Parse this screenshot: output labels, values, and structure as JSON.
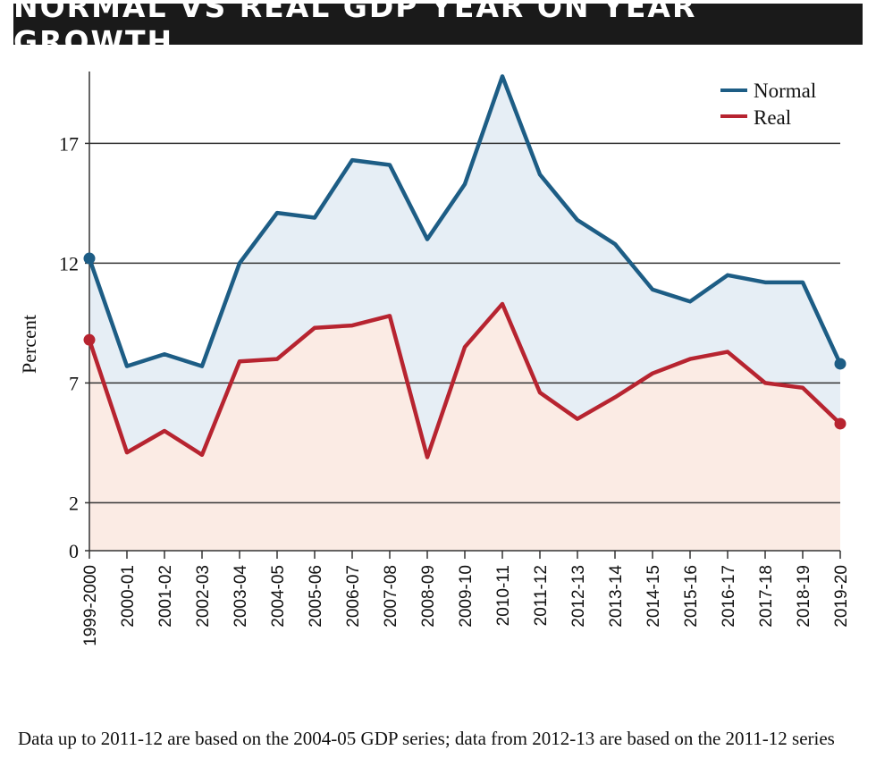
{
  "title": "NORMAL VS REAL GDP YEAR ON YEAR GROWTH",
  "footnote": "Data up to 2011-12 are based on the 2004-05 GDP series; data from 2012-13 are based on the 2011-12 series",
  "chart_data": {
    "type": "line",
    "title": "NORMAL VS REAL GDP YEAR ON YEAR GROWTH",
    "xlabel": "",
    "ylabel": "Percent",
    "categories": [
      "1999-2000",
      "2000-01",
      "2001-02",
      "2002-03",
      "2003-04",
      "2004-05",
      "2005-06",
      "2006-07",
      "2007-08",
      "2008-09",
      "2009-10",
      "2010-11",
      "2011-12",
      "2012-13",
      "2013-14",
      "2014-15",
      "2015-16",
      "2016-17",
      "2017-18",
      "2018-19",
      "2019-20"
    ],
    "series": [
      {
        "name": "Normal",
        "color": "#1d5d85",
        "values": [
          12.2,
          7.7,
          8.2,
          7.7,
          12.0,
          14.1,
          13.9,
          16.3,
          16.1,
          13.0,
          15.3,
          19.8,
          15.7,
          13.8,
          12.8,
          10.9,
          10.4,
          11.5,
          11.2,
          11.2,
          7.8
        ]
      },
      {
        "name": "Real",
        "color": "#b72430",
        "values": [
          8.8,
          4.1,
          5.0,
          4.0,
          7.9,
          8.0,
          9.3,
          9.4,
          9.8,
          3.9,
          8.5,
          10.3,
          6.6,
          5.5,
          6.4,
          7.4,
          8.0,
          8.3,
          7.0,
          6.8,
          5.3
        ]
      }
    ],
    "yticks": [
      0,
      2,
      7,
      12,
      17
    ],
    "ylim": [
      0,
      20
    ],
    "grid": true,
    "legend": "top-right",
    "colors": {
      "normal_fill": "#e6eef5",
      "real_fill": "#fbebe4"
    }
  }
}
